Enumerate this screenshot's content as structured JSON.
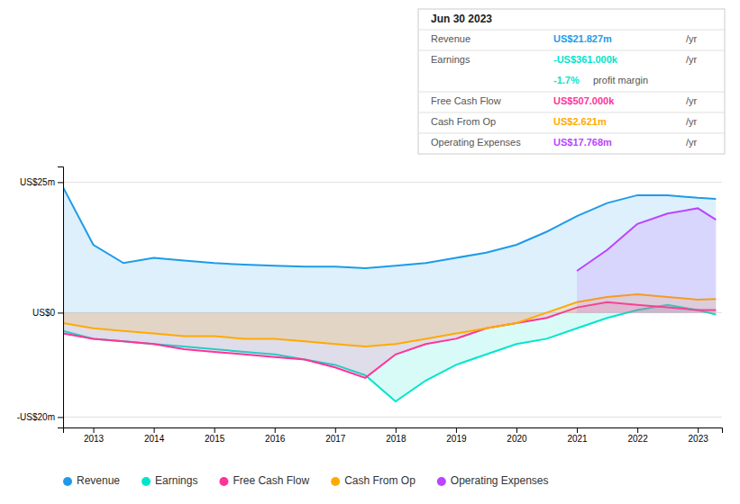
{
  "chart_data": {
    "type": "line",
    "x": [
      2012.5,
      2013.0,
      2013.5,
      2014.0,
      2014.5,
      2015.0,
      2015.5,
      2016.0,
      2016.5,
      2017.0,
      2017.5,
      2018.0,
      2018.5,
      2019.0,
      2019.5,
      2020.0,
      2020.5,
      2021.0,
      2021.5,
      2022.0,
      2022.5,
      2023.0,
      2023.3
    ],
    "series": [
      {
        "name": "Revenue",
        "color": "#1e9be8",
        "values": [
          24.0,
          13.0,
          9.5,
          10.5,
          10.0,
          9.5,
          9.2,
          9.0,
          8.8,
          8.8,
          8.5,
          9.0,
          9.5,
          10.5,
          11.5,
          13.0,
          15.5,
          18.5,
          21.0,
          22.5,
          22.5,
          22.0,
          21.8
        ]
      },
      {
        "name": "Earnings",
        "color": "#00e5cc",
        "values": [
          -3.5,
          -5.0,
          -5.5,
          -6.0,
          -6.5,
          -7.0,
          -7.5,
          -8.0,
          -9.0,
          -10.0,
          -12.0,
          -17.0,
          -13.0,
          -10.0,
          -8.0,
          -6.0,
          -5.0,
          -3.0,
          -1.0,
          0.5,
          1.5,
          0.5,
          -0.36
        ]
      },
      {
        "name": "Free Cash Flow",
        "color": "#ff3399",
        "values": [
          -4.0,
          -5.0,
          -5.5,
          -6.0,
          -7.0,
          -7.5,
          -8.0,
          -8.5,
          -9.0,
          -10.5,
          -12.5,
          -8.0,
          -6.0,
          -5.0,
          -3.0,
          -2.0,
          -1.0,
          1.0,
          2.0,
          1.5,
          1.0,
          0.5,
          0.5
        ]
      },
      {
        "name": "Cash From Op",
        "color": "#ffaa00",
        "values": [
          -2.0,
          -3.0,
          -3.5,
          -4.0,
          -4.5,
          -4.5,
          -5.0,
          -5.0,
          -5.5,
          -6.0,
          -6.5,
          -6.0,
          -5.0,
          -4.0,
          -3.0,
          -2.0,
          0.0,
          2.0,
          3.0,
          3.5,
          3.0,
          2.5,
          2.6
        ]
      },
      {
        "name": "Operating Expenses",
        "color": "#bb44ff",
        "values": [
          null,
          null,
          null,
          null,
          null,
          null,
          null,
          null,
          null,
          null,
          null,
          null,
          null,
          null,
          null,
          null,
          null,
          8.0,
          12.0,
          17.0,
          19.0,
          20.0,
          17.8
        ]
      }
    ],
    "xlim": [
      2012.5,
      2023.4
    ],
    "xticks": [
      2013,
      2014,
      2015,
      2016,
      2017,
      2018,
      2019,
      2020,
      2021,
      2022,
      2023
    ],
    "ylim": [
      -22,
      28
    ],
    "yticks": [
      {
        "value": -20,
        "label": "-US$20m"
      },
      {
        "value": 0,
        "label": "US$0"
      },
      {
        "value": 25,
        "label": "US$25m"
      }
    ],
    "grid": true,
    "legend": "bottom",
    "annotations": [
      "Jun 30 2023",
      "US$21.827m",
      "-US$361.000k",
      "-1.7%",
      "profit margin",
      "US$507.000k",
      "US$2.621m",
      "US$17.768m",
      "/yr"
    ]
  }
}
